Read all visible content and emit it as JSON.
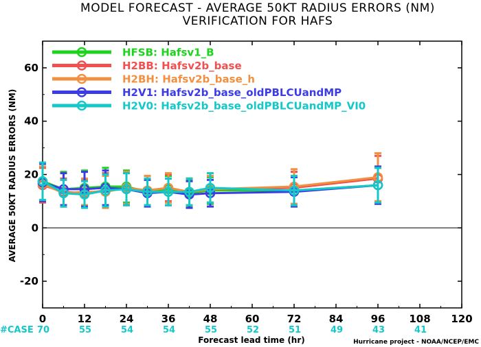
{
  "chart_data": {
    "type": "line",
    "title": "MODEL FORECAST - AVERAGE 50KT RADIUS ERRORS (NM)",
    "subtitle": "VERIFICATION FOR HAFS",
    "xlabel": "Forecast lead time (hr)",
    "ylabel": "AVERAGE 50KT RADIUS ERRORS (NM)",
    "credit": "Hurricane project - NOAA/NCEP/EMC",
    "xlim": [
      0,
      120
    ],
    "ylim": [
      -30,
      70
    ],
    "x_ticks": [
      0,
      12,
      24,
      36,
      48,
      60,
      72,
      84,
      96,
      108,
      120
    ],
    "y_ticks": [
      -20,
      0,
      20,
      40,
      60
    ],
    "zero_line": true,
    "grid": false,
    "legend_position": "top-left",
    "case_label": "#CASE",
    "cases": [
      {
        "x": 0,
        "n": "70"
      },
      {
        "x": 12,
        "n": "55"
      },
      {
        "x": 24,
        "n": "54"
      },
      {
        "x": 36,
        "n": "54"
      },
      {
        "x": 48,
        "n": "55"
      },
      {
        "x": 60,
        "n": "52"
      },
      {
        "x": 72,
        "n": "51"
      },
      {
        "x": 84,
        "n": "49"
      },
      {
        "x": 96,
        "n": "43"
      },
      {
        "x": 108,
        "n": "41"
      }
    ],
    "series": [
      {
        "code": "HFSB",
        "name": "Hafsv1_B",
        "label": "HFSB:  Hafsv1_B",
        "color": "#1ed21e",
        "x": [
          0,
          6,
          12,
          18,
          24,
          30,
          36,
          42,
          48,
          72,
          96
        ],
        "y": [
          17.5,
          14.5,
          15,
          15.5,
          15.5,
          13.5,
          14.5,
          13,
          14,
          14,
          16
        ],
        "err": [
          7,
          6.5,
          6.5,
          7,
          6,
          5,
          5,
          5,
          5,
          5.5,
          6.5
        ]
      },
      {
        "code": "H2BB",
        "name": "Hafsv2b_base",
        "label": "H2BB:  Hafsv2b_base",
        "color": "#f05050",
        "x": [
          0,
          6,
          12,
          18,
          24,
          30,
          36,
          42,
          48,
          72,
          96
        ],
        "y": [
          16,
          13.5,
          13,
          14,
          15,
          14,
          15,
          13.5,
          14.5,
          15,
          18.5
        ],
        "err": [
          6.5,
          5,
          5,
          6.5,
          6,
          5.5,
          5,
          5,
          5,
          6,
          8.5
        ]
      },
      {
        "code": "H2BH",
        "name": "Hafsv2b_base_h",
        "label": "H2BH:  Hafsv2b_base_h",
        "color": "#f09040",
        "x": [
          0,
          6,
          12,
          18,
          24,
          30,
          36,
          42,
          48,
          72,
          96
        ],
        "y": [
          16.5,
          13,
          13.5,
          13.5,
          15,
          14,
          15,
          13.5,
          14.5,
          15.5,
          19
        ],
        "err": [
          6.5,
          5,
          5,
          6,
          6,
          5.5,
          5.5,
          5,
          5,
          6.5,
          9
        ]
      },
      {
        "code": "H2V1",
        "name": "Hafsv2b_base_oldPBLCUandMP",
        "label": "H2V1:  Hafsv2b_base_oldPBLCUandMP",
        "color": "#3c3ce6",
        "x": [
          0,
          6,
          12,
          18,
          24,
          30,
          36,
          42,
          48,
          72,
          96
        ],
        "y": [
          17,
          14.5,
          14.5,
          15,
          14.5,
          13,
          13.5,
          12.5,
          13,
          13.5,
          16
        ],
        "err": [
          7,
          6,
          6.5,
          6.5,
          6,
          5,
          5,
          5,
          5,
          5.5,
          7
        ]
      },
      {
        "code": "H2V0",
        "name": "Hafsv2b_base_oldPBLCUandMP_VI0",
        "label": "H2V0:  Hafsv2b_base_oldPBLCUandMP_VI0",
        "color": "#14c8c8",
        "x": [
          0,
          6,
          12,
          18,
          24,
          30,
          36,
          42,
          48,
          72,
          96
        ],
        "y": [
          17.5,
          13,
          12.5,
          14,
          14.5,
          13.5,
          13.5,
          13.5,
          15,
          14,
          16
        ],
        "err": [
          7,
          5,
          5,
          6,
          6,
          5,
          5,
          5,
          5.5,
          5.5,
          6.5
        ]
      }
    ]
  }
}
